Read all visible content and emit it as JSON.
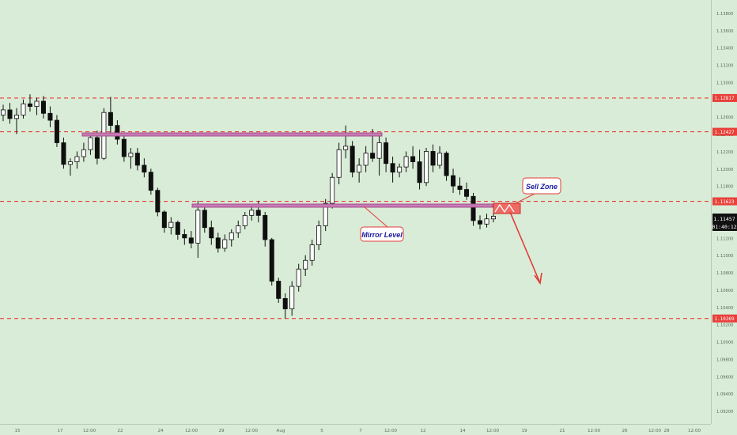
{
  "chart_data": {
    "type": "candlestick",
    "ylim": [
      1.0905,
      1.1395
    ],
    "price_ticks": [
      "1.13800",
      "1.13600",
      "1.13400",
      "1.13200",
      "1.13000",
      "1.12800",
      "1.12600",
      "1.12400",
      "1.12200",
      "1.12000",
      "1.11800",
      "1.11600",
      "1.11400",
      "1.11200",
      "1.11000",
      "1.10800",
      "1.10600",
      "1.10400",
      "1.10200",
      "1.10000",
      "1.09800",
      "1.09600",
      "1.09400",
      "1.09200"
    ],
    "time_ticks": [
      "15",
      "17",
      "12:00",
      "22",
      "24",
      "12:00",
      "29",
      "12:00",
      "Aug",
      "5",
      "7",
      "12:00",
      "12",
      "14",
      "12:00",
      "19",
      "21",
      "12:00",
      "26",
      "12:00",
      "28",
      "12:00"
    ],
    "series": [
      {
        "ohlc": [
          [
            1.1262,
            1.1274,
            1.1255,
            1.1268
          ],
          [
            1.1268,
            1.1276,
            1.1252,
            1.1258
          ],
          [
            1.1258,
            1.127,
            1.124,
            1.1262
          ],
          [
            1.1262,
            1.128,
            1.1258,
            1.1275
          ],
          [
            1.1275,
            1.1286,
            1.1266,
            1.1272
          ],
          [
            1.1272,
            1.1282,
            1.1262,
            1.1278
          ],
          [
            1.1278,
            1.1284,
            1.1258,
            1.1264
          ],
          [
            1.1264,
            1.1272,
            1.1248,
            1.1256
          ],
          [
            1.1256,
            1.1262,
            1.1225,
            1.123
          ],
          [
            1.123,
            1.1236,
            1.12,
            1.1205
          ],
          [
            1.1205,
            1.1212,
            1.1192,
            1.1208
          ],
          [
            1.1208,
            1.122,
            1.12,
            1.1214
          ],
          [
            1.1214,
            1.123,
            1.1208,
            1.1222
          ],
          [
            1.1222,
            1.124,
            1.1216,
            1.1236
          ],
          [
            1.1236,
            1.1244,
            1.1205,
            1.1212
          ],
          [
            1.1212,
            1.127,
            1.121,
            1.1265
          ],
          [
            1.1265,
            1.1283,
            1.124,
            1.125
          ],
          [
            1.125,
            1.1256,
            1.1228,
            1.1234
          ],
          [
            1.1234,
            1.124,
            1.1208,
            1.1214
          ],
          [
            1.1214,
            1.1224,
            1.12,
            1.1218
          ],
          [
            1.1218,
            1.1224,
            1.1198,
            1.1204
          ],
          [
            1.1204,
            1.1212,
            1.119,
            1.1196
          ],
          [
            1.1196,
            1.12,
            1.117,
            1.1175
          ],
          [
            1.1175,
            1.1178,
            1.1145,
            1.115
          ],
          [
            1.115,
            1.1152,
            1.1126,
            1.1132
          ],
          [
            1.1132,
            1.1144,
            1.1124,
            1.1138
          ],
          [
            1.1138,
            1.114,
            1.1118,
            1.1124
          ],
          [
            1.1124,
            1.113,
            1.1112,
            1.112
          ],
          [
            1.112,
            1.1128,
            1.1108,
            1.1114
          ],
          [
            1.1114,
            1.1163,
            1.1097,
            1.1152
          ],
          [
            1.1152,
            1.1156,
            1.1126,
            1.1132
          ],
          [
            1.1132,
            1.114,
            1.1112,
            1.112
          ],
          [
            1.112,
            1.1126,
            1.1103,
            1.1108
          ],
          [
            1.1108,
            1.1124,
            1.1104,
            1.1118
          ],
          [
            1.1118,
            1.113,
            1.111,
            1.1126
          ],
          [
            1.1126,
            1.114,
            1.112,
            1.1134
          ],
          [
            1.1134,
            1.115,
            1.113,
            1.1146
          ],
          [
            1.1146,
            1.1158,
            1.114,
            1.1152
          ],
          [
            1.1152,
            1.1163,
            1.1138,
            1.1146
          ],
          [
            1.1146,
            1.115,
            1.111,
            1.1118
          ],
          [
            1.1118,
            1.112,
            1.1065,
            1.107
          ],
          [
            1.107,
            1.1074,
            1.1045,
            1.105
          ],
          [
            1.105,
            1.1056,
            1.1027,
            1.1038
          ],
          [
            1.1038,
            1.107,
            1.103,
            1.1064
          ],
          [
            1.1064,
            1.109,
            1.1058,
            1.1084
          ],
          [
            1.1084,
            1.11,
            1.1076,
            1.1094
          ],
          [
            1.1094,
            1.1118,
            1.1088,
            1.1112
          ],
          [
            1.1112,
            1.114,
            1.1106,
            1.1134
          ],
          [
            1.1134,
            1.1165,
            1.1128,
            1.116
          ],
          [
            1.116,
            1.1195,
            1.1154,
            1.119
          ],
          [
            1.119,
            1.123,
            1.1182,
            1.1222
          ],
          [
            1.1222,
            1.125,
            1.1212,
            1.1226
          ],
          [
            1.1226,
            1.1232,
            1.119,
            1.1196
          ],
          [
            1.1196,
            1.1212,
            1.1184,
            1.1204
          ],
          [
            1.1204,
            1.1226,
            1.1196,
            1.1218
          ],
          [
            1.1218,
            1.1246,
            1.1208,
            1.1212
          ],
          [
            1.1212,
            1.124,
            1.1192,
            1.123
          ],
          [
            1.123,
            1.1236,
            1.1196,
            1.1206
          ],
          [
            1.1206,
            1.1214,
            1.1184,
            1.1196
          ],
          [
            1.1196,
            1.1206,
            1.119,
            1.1202
          ],
          [
            1.1202,
            1.122,
            1.1196,
            1.1214
          ],
          [
            1.1214,
            1.1226,
            1.12,
            1.1208
          ],
          [
            1.1208,
            1.1222,
            1.1176,
            1.1184
          ],
          [
            1.1184,
            1.1224,
            1.118,
            1.122
          ],
          [
            1.122,
            1.1228,
            1.1196,
            1.1204
          ],
          [
            1.1204,
            1.1226,
            1.12,
            1.1218
          ],
          [
            1.1218,
            1.122,
            1.1186,
            1.1192
          ],
          [
            1.1192,
            1.12,
            1.1172,
            1.118
          ],
          [
            1.118,
            1.119,
            1.117,
            1.1176
          ],
          [
            1.1176,
            1.1184,
            1.1164,
            1.1168
          ],
          [
            1.1168,
            1.1172,
            1.1134,
            1.114
          ],
          [
            1.114,
            1.1146,
            1.113,
            1.1136
          ],
          [
            1.1136,
            1.1148,
            1.1132,
            1.1142
          ],
          [
            1.1142,
            1.115,
            1.1138,
            1.1145
          ]
        ]
      }
    ],
    "levels": [
      {
        "price": 1.12817,
        "label": "1.12817"
      },
      {
        "price": 1.12427,
        "label": "1.12427"
      },
      {
        "price": 1.11623,
        "label": "1.11623"
      },
      {
        "price": 1.10269,
        "label": "1.10269"
      }
    ],
    "current_price": "1.11457",
    "countdown": "01:40:12",
    "annotations": {
      "mirror_level": "Mirror Level",
      "sell_zone": "Sell Zone"
    },
    "colors": {
      "background": "#d9ecd7",
      "level_line": "#e8403a",
      "level_tag": "#e8403a",
      "zone_line": "#a64d8f",
      "candle": "#0f0f0f",
      "annotation_text": "#1a1aa0",
      "arrow": "#e33b36"
    }
  }
}
